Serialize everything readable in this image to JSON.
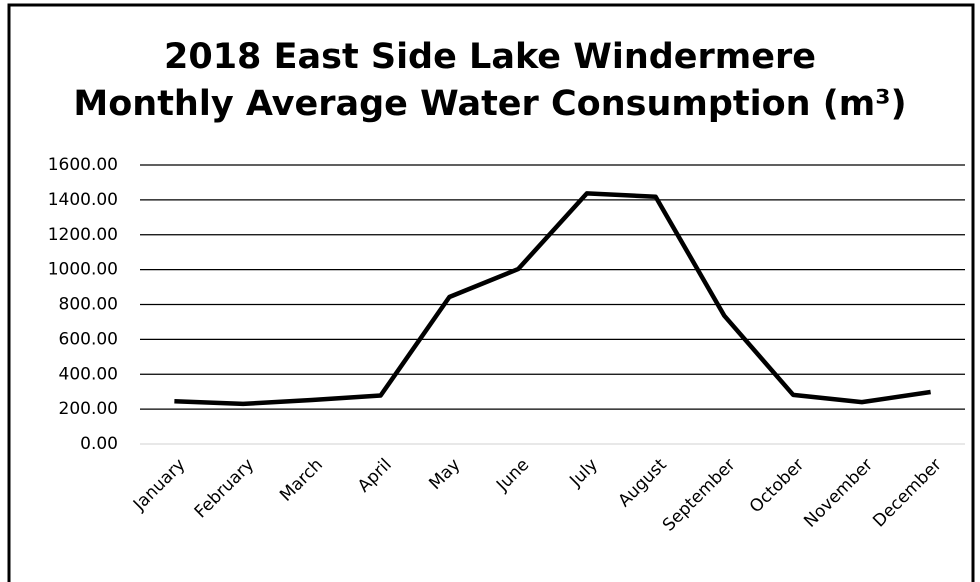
{
  "chart_data": {
    "type": "line",
    "title": [
      "2018 East Side Lake Windermere",
      "Monthly Average Water Consumption (m³)"
    ],
    "categories": [
      "January",
      "February",
      "March",
      "April",
      "May",
      "June",
      "July",
      "August",
      "September",
      "October",
      "November",
      "December"
    ],
    "values": [
      245,
      230,
      252,
      278,
      843,
      1003,
      1437,
      1418,
      735,
      282,
      240,
      298
    ],
    "color": "#000000",
    "ylim": [
      0,
      1600
    ],
    "yticks": [
      {
        "value": 0,
        "label": "0.00"
      },
      {
        "value": 200,
        "label": "200.00"
      },
      {
        "value": 400,
        "label": "400.00"
      },
      {
        "value": 600,
        "label": "600.00"
      },
      {
        "value": 800,
        "label": "800.00"
      },
      {
        "value": 1000,
        "label": "1000.00"
      },
      {
        "value": 1200,
        "label": "1200.00"
      },
      {
        "value": 1400,
        "label": "1400.00"
      },
      {
        "value": 1600,
        "label": "1600.00"
      }
    ],
    "grid": true,
    "grid_color": "#000000",
    "axis_color": "#d9d9d9"
  }
}
